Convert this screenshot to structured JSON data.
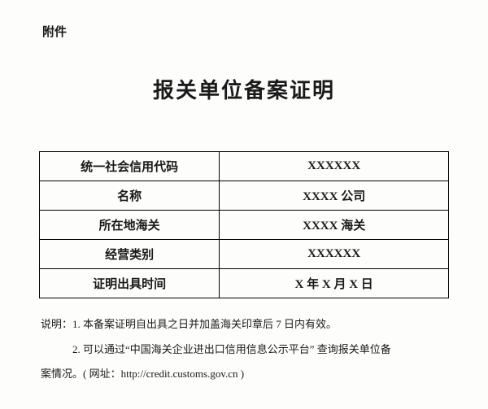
{
  "attachment_label": "附件",
  "title": "报关单位备案证明",
  "table": {
    "rows": [
      {
        "label": "统一社会信用代码",
        "value": "XXXXXX"
      },
      {
        "label": "名称",
        "value": "XXXX 公司"
      },
      {
        "label": "所在地海关",
        "value": "XXXX 海关"
      },
      {
        "label": "经营类别",
        "value": "XXXXXX"
      },
      {
        "label": "证明出具时间",
        "value": "X 年 X 月 X 日"
      }
    ]
  },
  "notes": {
    "prefix": "说明：",
    "line1": "1. 本备案证明自出具之日并加盖海关印章后 7 日内有效。",
    "line2_a": "2. 可以通过“中国海关企业进出口信用信息公示平台” 查询报关单位备",
    "line2_b": "案情况。( 网址：http://credit.customs.gov.cn )"
  },
  "colors": {
    "background": "#fdfdfc",
    "text": "#1a1a1a",
    "border": "#000000"
  }
}
